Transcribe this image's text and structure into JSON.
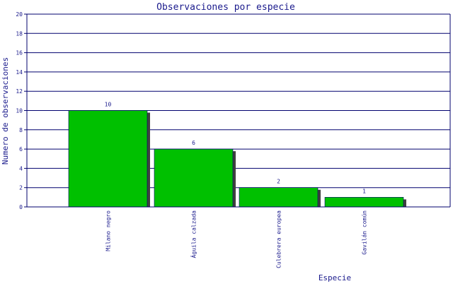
{
  "chart_data": {
    "type": "bar",
    "title": "Observaciones por especie",
    "xlabel": "Especie",
    "ylabel": "Numero de observaciones",
    "categories": [
      "Milano negro",
      "Águila calzada",
      "Culebrera europea",
      "Gavilán común"
    ],
    "values": [
      10,
      6,
      2,
      1
    ],
    "data_labels": [
      "10",
      "6",
      "2",
      "1"
    ],
    "ylim": [
      0,
      20
    ],
    "yticks": [
      0,
      2,
      4,
      6,
      8,
      10,
      12,
      14,
      16,
      18,
      20
    ],
    "grid": true,
    "colors": {
      "bar": "#00c000",
      "bar_shadow": "#404040",
      "grid": "#00006e",
      "axis": "#00006e",
      "text": "#1a1a8c"
    }
  }
}
